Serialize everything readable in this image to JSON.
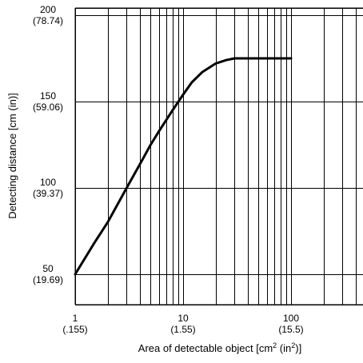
{
  "chart_data": {
    "type": "line",
    "xscale": "log",
    "xlim": [
      1,
      400
    ],
    "ylim": [
      50,
      200
    ],
    "grid": true,
    "xlabel": "Area of detectable object [cm² (in²)]",
    "ylabel": "Detecting distance [cm (in)]",
    "x_ticks": [
      {
        "value": 1,
        "label": "1",
        "sublabel": "(.155)"
      },
      {
        "value": 10,
        "label": "10",
        "sublabel": "(1.55)"
      },
      {
        "value": 100,
        "label": "100",
        "sublabel": "(15.5)"
      }
    ],
    "y_ticks": [
      {
        "value": 50,
        "label": "50",
        "sublabel": "(19.69)"
      },
      {
        "value": 100,
        "label": "100",
        "sublabel": "(39.37)"
      },
      {
        "value": 150,
        "label": "150",
        "sublabel": "(59.06)"
      },
      {
        "value": 200,
        "label": "200",
        "sublabel": "(78.74)"
      }
    ],
    "series": [
      {
        "x": [
          1,
          1.5,
          2,
          3,
          4,
          5,
          6,
          8,
          10,
          12,
          15,
          20,
          25,
          30,
          40,
          60,
          80,
          100
        ],
        "y": [
          50,
          68,
          80,
          100,
          114,
          125,
          133,
          145,
          154,
          161,
          167,
          172,
          174,
          175,
          175,
          175,
          175,
          175
        ]
      }
    ]
  }
}
